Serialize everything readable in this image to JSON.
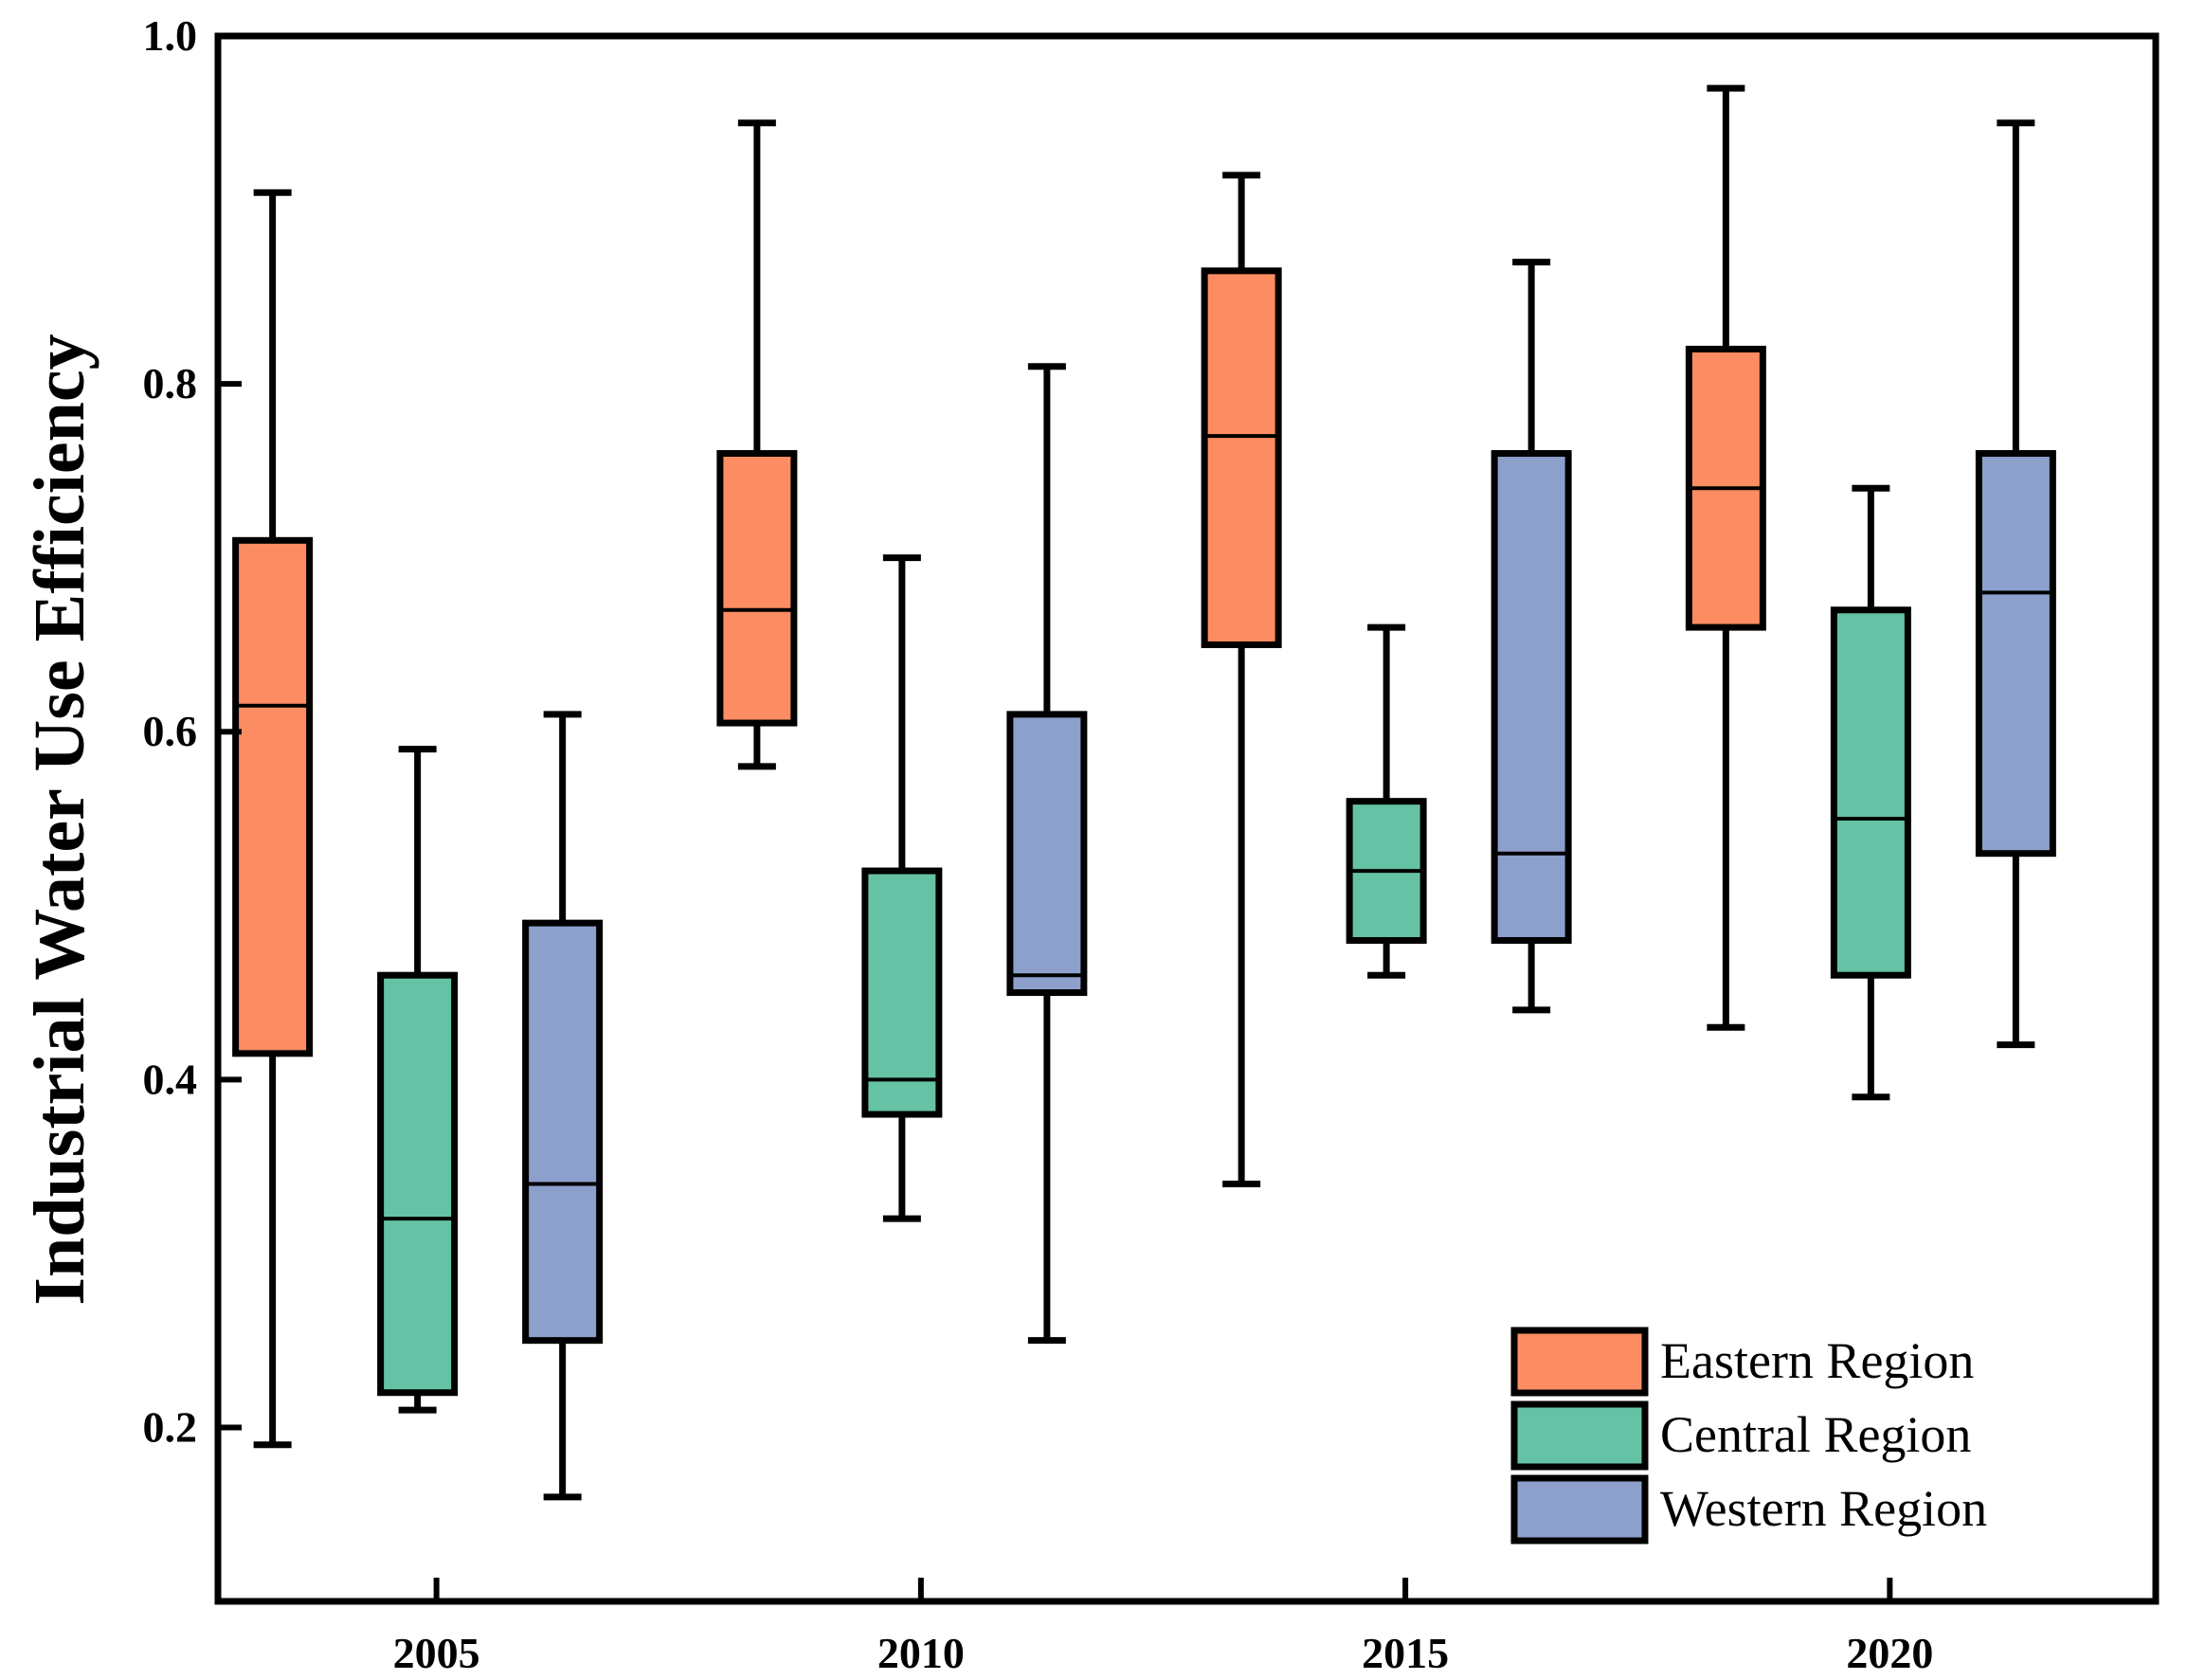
{
  "chart_data": {
    "type": "boxplot",
    "title": "",
    "xlabel": "",
    "ylabel": "Industrial Water Use Efficiency",
    "ylim": [
      0.1,
      1.0
    ],
    "yticks": [
      "0.2",
      "0.4",
      "0.6",
      "0.8",
      "1.0"
    ],
    "categories": [
      "2005",
      "2010",
      "2015",
      "2020"
    ],
    "legend_position": "bottom-right",
    "series": [
      {
        "name": "Eastern Region",
        "color": "#FC8D62",
        "boxes": [
          {
            "whisker_low": 0.19,
            "q1": 0.415,
            "median": 0.615,
            "q3": 0.71,
            "whisker_high": 0.91
          },
          {
            "whisker_low": 0.58,
            "q1": 0.605,
            "median": 0.67,
            "q3": 0.76,
            "whisker_high": 0.95
          },
          {
            "whisker_low": 0.34,
            "q1": 0.65,
            "median": 0.77,
            "q3": 0.865,
            "whisker_high": 0.92
          },
          {
            "whisker_low": 0.43,
            "q1": 0.66,
            "median": 0.74,
            "q3": 0.82,
            "whisker_high": 0.97
          }
        ]
      },
      {
        "name": "Central Region",
        "color": "#66C2A5",
        "boxes": [
          {
            "whisker_low": 0.21,
            "q1": 0.22,
            "median": 0.32,
            "q3": 0.46,
            "whisker_high": 0.59
          },
          {
            "whisker_low": 0.32,
            "q1": 0.38,
            "median": 0.4,
            "q3": 0.52,
            "whisker_high": 0.7
          },
          {
            "whisker_low": 0.46,
            "q1": 0.48,
            "median": 0.52,
            "q3": 0.56,
            "whisker_high": 0.66
          },
          {
            "whisker_low": 0.39,
            "q1": 0.46,
            "median": 0.55,
            "q3": 0.67,
            "whisker_high": 0.74
          }
        ]
      },
      {
        "name": "Western Region",
        "color": "#8DA0CB",
        "boxes": [
          {
            "whisker_low": 0.16,
            "q1": 0.25,
            "median": 0.34,
            "q3": 0.49,
            "whisker_high": 0.61
          },
          {
            "whisker_low": 0.25,
            "q1": 0.45,
            "median": 0.46,
            "q3": 0.61,
            "whisker_high": 0.81
          },
          {
            "whisker_low": 0.44,
            "q1": 0.48,
            "median": 0.53,
            "q3": 0.76,
            "whisker_high": 0.87
          },
          {
            "whisker_low": 0.42,
            "q1": 0.53,
            "median": 0.68,
            "q3": 0.76,
            "whisker_high": 0.95
          }
        ]
      }
    ]
  }
}
